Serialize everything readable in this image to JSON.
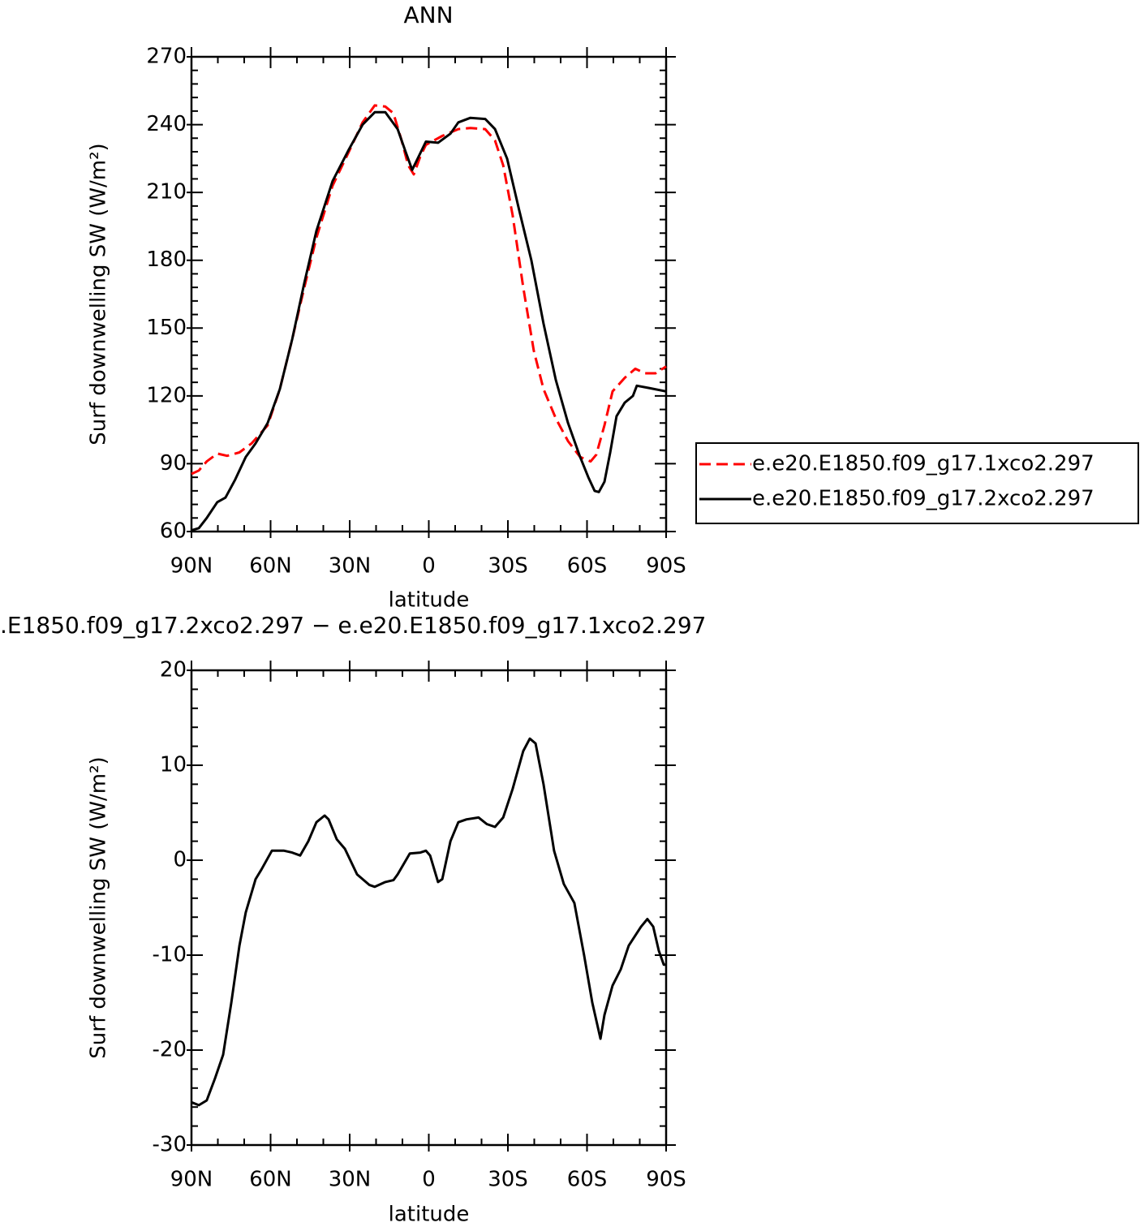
{
  "chart_data": [
    {
      "type": "line",
      "title": "ANN",
      "xlabel": "latitude",
      "ylabel": "Surf downwelling SW (W/m²)",
      "xlim": [
        90,
        -90
      ],
      "xticks": [
        {
          "value": 90,
          "label": "90N"
        },
        {
          "value": 60,
          "label": "60N"
        },
        {
          "value": 30,
          "label": "30N"
        },
        0,
        {
          "value": -30,
          "label": "30S"
        },
        {
          "value": -60,
          "label": "60S"
        },
        {
          "value": -90,
          "label": "90S"
        }
      ],
      "ylim": [
        60,
        270
      ],
      "yticks": [
        60,
        90,
        120,
        150,
        180,
        210,
        240,
        270
      ],
      "legend": "right",
      "series": [
        {
          "name": "e.e20.E1850.f09_g17.1xco2.297",
          "color": "#ff0000",
          "style": "dashed",
          "x": [
            90,
            87.2,
            84.2,
            80.2,
            76.5,
            71.8,
            67.2,
            61.1,
            56.5,
            51.8,
            47.2,
            42.6,
            36.5,
            30.3,
            25.1,
            20.5,
            16.5,
            13.4,
            10.3,
            7.8,
            5.7,
            3.2,
            1.1,
            -5.1,
            -11.2,
            -15.8,
            -21.4,
            -25.1,
            -28.2,
            -31.8,
            -35.8,
            -39.8,
            -43.5,
            -48.2,
            -52.8,
            -57.4,
            -61.4,
            -63.5,
            -66.6,
            -69.7,
            -74.3,
            -78.3,
            -82.0,
            -86.0,
            -90
          ],
          "values": [
            85.5,
            87,
            91,
            94.5,
            93.5,
            95,
            99,
            107,
            123,
            145,
            168,
            190,
            213,
            228,
            241,
            248.5,
            248,
            245,
            233,
            222,
            218,
            226,
            231,
            235,
            238,
            238.5,
            238,
            233,
            222,
            200,
            168,
            140,
            123,
            110,
            100,
            93,
            91,
            94,
            107,
            122,
            128,
            132,
            130,
            130,
            133
          ]
        },
        {
          "name": "e.e20.E1850.f09_g17.2xco2.297",
          "color": "#000000",
          "style": "solid",
          "x": [
            90,
            87.2,
            84.2,
            80.2,
            77.1,
            73.4,
            69.4,
            65.7,
            61.1,
            56.5,
            51.8,
            47.2,
            42.6,
            36.5,
            30.3,
            25.1,
            20.5,
            16.5,
            11.8,
            8.8,
            6.3,
            4.2,
            1.1,
            -3.5,
            -8.2,
            -11.2,
            -15.8,
            -21.4,
            -25.1,
            -29.7,
            -34.3,
            -38.9,
            -43.5,
            -48.2,
            -52.8,
            -57.4,
            -60.5,
            -62.9,
            -64.5,
            -66.6,
            -68.8,
            -71.2,
            -74.3,
            -77.4,
            -78.9,
            -83.5,
            -90
          ],
          "values": [
            60.5,
            61.5,
            66,
            73,
            75,
            83,
            93,
            99,
            108,
            123,
            145,
            170,
            193,
            215,
            229,
            240,
            245.5,
            245.5,
            238,
            228,
            220,
            225,
            232.5,
            232,
            236,
            241,
            243,
            242.5,
            238,
            225,
            202,
            180,
            152,
            127,
            108,
            93,
            84,
            78,
            77.5,
            82,
            95,
            111,
            117,
            120,
            124.5,
            123.5,
            122
          ]
        }
      ]
    },
    {
      "type": "line",
      "title": ".E1850.f09_g17.2xco2.297 − e.e20.E1850.f09_g17.1xco2.297",
      "xlabel": "latitude",
      "ylabel": "Surf downwelling SW (W/m²)",
      "xlim": [
        90,
        -90
      ],
      "xticks": [
        {
          "value": 90,
          "label": "90N"
        },
        {
          "value": 60,
          "label": "60N"
        },
        {
          "value": 30,
          "label": "30N"
        },
        0,
        {
          "value": -30,
          "label": "30S"
        },
        {
          "value": -60,
          "label": "60S"
        },
        {
          "value": -90,
          "label": "90S"
        }
      ],
      "ylim": [
        -30,
        20
      ],
      "yticks": [
        -30,
        -20,
        -10,
        0,
        10,
        20
      ],
      "series": [
        {
          "color": "#000000",
          "style": "solid",
          "x": [
            90,
            87.2,
            84.2,
            81.1,
            78.0,
            74.9,
            71.8,
            69.4,
            65.7,
            63.5,
            59.5,
            54.9,
            51.8,
            48.8,
            45.7,
            42.6,
            39.5,
            38.0,
            34.9,
            31.8,
            27.2,
            22.6,
            20.5,
            16.5,
            13.4,
            11.8,
            7.2,
            3.2,
            1.1,
            -0.5,
            -3.5,
            -5.1,
            -8.2,
            -11.2,
            -14.3,
            -18.9,
            -22.0,
            -25.1,
            -28.2,
            -31.8,
            -35.8,
            -38.3,
            -40.5,
            -43.5,
            -47.5,
            -51.2,
            -55.2,
            -58.9,
            -62.0,
            -65.1,
            -66.6,
            -69.7,
            -72.8,
            -75.8,
            -80.5,
            -82.9,
            -85.1,
            -87.2,
            -89.1,
            -90
          ],
          "values": [
            -25.5,
            -25.8,
            -25.3,
            -23,
            -20.5,
            -15,
            -9,
            -5.5,
            -2,
            -1,
            1,
            1,
            0.8,
            0.5,
            2,
            4,
            4.7,
            4.3,
            2.2,
            1.2,
            -1.5,
            -2.6,
            -2.8,
            -2.3,
            -2.1,
            -1.5,
            0.7,
            0.8,
            1,
            0.5,
            -2.3,
            -2,
            2,
            4,
            4.3,
            4.5,
            3.8,
            3.5,
            4.5,
            7.5,
            11.5,
            12.8,
            12.3,
            8,
            1,
            -2.5,
            -4.5,
            -10,
            -15,
            -18.8,
            -16.3,
            -13.2,
            -11.5,
            -9,
            -7,
            -6.2,
            -7,
            -9.5,
            -11,
            -11
          ]
        }
      ]
    }
  ]
}
